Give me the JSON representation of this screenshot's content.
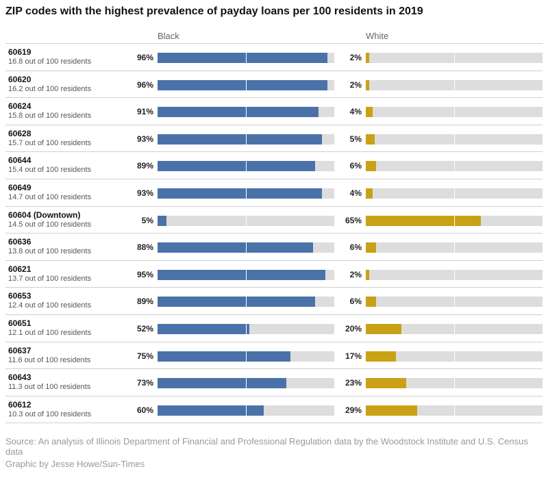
{
  "title": "ZIP codes with the highest prevalence of payday loans per 100 residents in 2019",
  "footer": {
    "source": "Source: An analysis of Illinois Department of Financial and Professional Regulation data by the Woodstock Institute and U.S. Census data",
    "credit": "Graphic by Jesse Howe/Sun-Times"
  },
  "chart_data": {
    "type": "bar",
    "series": [
      {
        "name": "Black",
        "color": "#4a72a8"
      },
      {
        "name": "White",
        "color": "#c9a115"
      }
    ],
    "xlim": [
      0,
      100
    ],
    "grid": "midline at 50%",
    "rows": [
      {
        "zip": "60619",
        "sub": "16.8 out of 100 residents",
        "black": 96,
        "white": 2,
        "black_label": "96%",
        "white_label": "2%"
      },
      {
        "zip": "60620",
        "sub": "16.2 out of 100 residents",
        "black": 96,
        "white": 2,
        "black_label": "96%",
        "white_label": "2%"
      },
      {
        "zip": "60624",
        "sub": "15.8 out of 100 residents",
        "black": 91,
        "white": 4,
        "black_label": "91%",
        "white_label": "4%"
      },
      {
        "zip": "60628",
        "sub": "15.7 out of 100 residents",
        "black": 93,
        "white": 5,
        "black_label": "93%",
        "white_label": "5%"
      },
      {
        "zip": "60644",
        "sub": "15.4 out of 100 residents",
        "black": 89,
        "white": 6,
        "black_label": "89%",
        "white_label": "6%"
      },
      {
        "zip": "60649",
        "sub": "14.7 out of 100 residents",
        "black": 93,
        "white": 4,
        "black_label": "93%",
        "white_label": "4%"
      },
      {
        "zip": "60604 (Downtown)",
        "sub": "14.5 out of 100 residents",
        "black": 5,
        "white": 65,
        "black_label": "5%",
        "white_label": "65%"
      },
      {
        "zip": "60636",
        "sub": "13.8 out of 100 residents",
        "black": 88,
        "white": 6,
        "black_label": "88%",
        "white_label": "6%"
      },
      {
        "zip": "60621",
        "sub": "13.7 out of 100 residents",
        "black": 95,
        "white": 2,
        "black_label": "95%",
        "white_label": "2%"
      },
      {
        "zip": "60653",
        "sub": "12.4 out of 100 residents",
        "black": 89,
        "white": 6,
        "black_label": "89%",
        "white_label": "6%"
      },
      {
        "zip": "60651",
        "sub": "12.1 out of 100 residents",
        "black": 52,
        "white": 20,
        "black_label": "52%",
        "white_label": "20%"
      },
      {
        "zip": "60637",
        "sub": "11.6 out of 100 residents",
        "black": 75,
        "white": 17,
        "black_label": "75%",
        "white_label": "17%"
      },
      {
        "zip": "60643",
        "sub": "11.3 out of 100 residents",
        "black": 73,
        "white": 23,
        "black_label": "73%",
        "white_label": "23%"
      },
      {
        "zip": "60612",
        "sub": "10.3 out of 100 residents",
        "black": 60,
        "white": 29,
        "black_label": "60%",
        "white_label": "29%"
      }
    ]
  }
}
